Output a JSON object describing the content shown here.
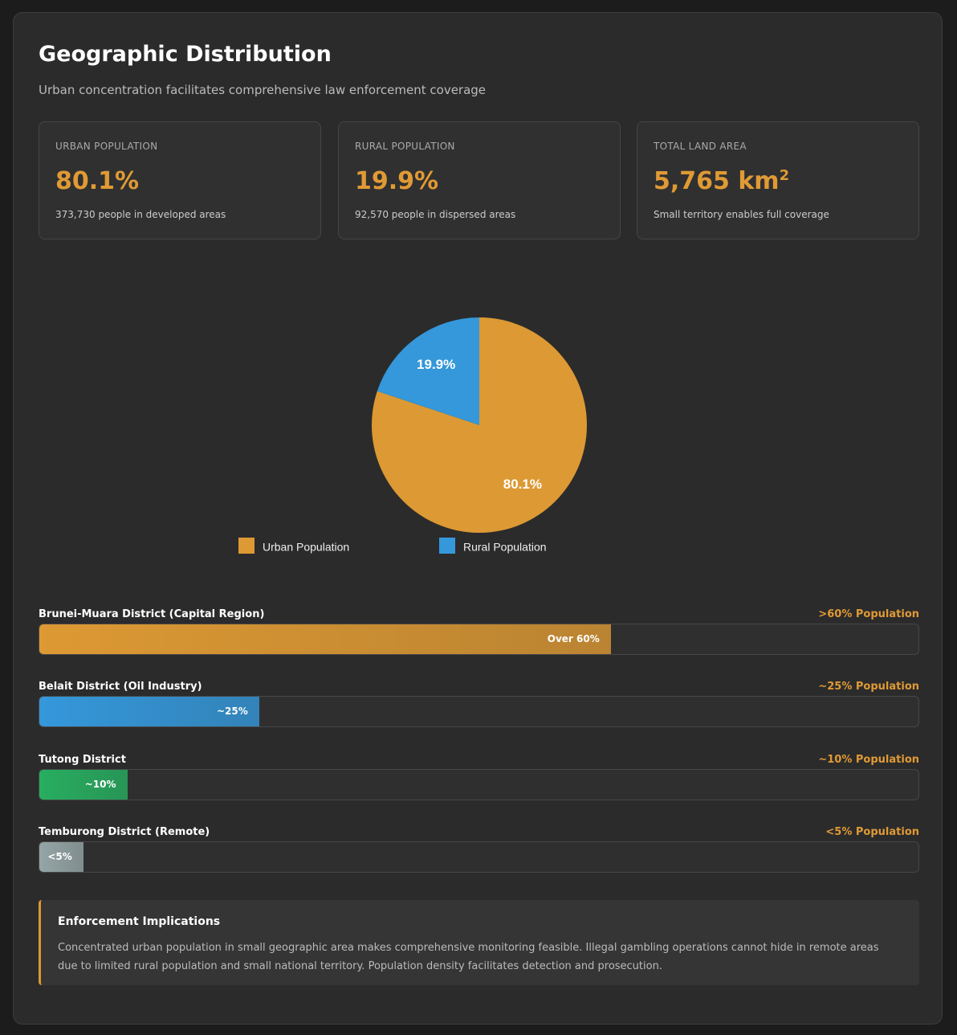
{
  "header": {
    "title": "Geographic Distribution",
    "subtitle": "Urban concentration facilitates comprehensive law enforcement coverage"
  },
  "cards": [
    {
      "label": "URBAN POPULATION",
      "value": "80.1%",
      "description": "373,730 people in developed areas"
    },
    {
      "label": "RURAL POPULATION",
      "value": "19.9%",
      "description": "92,570 people in dispersed areas"
    },
    {
      "label": "TOTAL LAND AREA",
      "value": "5,765 km",
      "value_sup": "2",
      "description": "Small territory enables full coverage"
    }
  ],
  "chart_data": {
    "type": "pie",
    "categories": [
      "Urban Population",
      "Rural Population"
    ],
    "values": [
      80.1,
      19.9
    ],
    "value_labels": [
      "80.1%",
      "19.9%"
    ],
    "colors": [
      "#dd9933",
      "#3498db"
    ]
  },
  "districts": [
    {
      "name": "Brunei-Muara District (Capital Region)",
      "share_label": ">60% Population",
      "value": 65,
      "value_label": "Over 60%",
      "color": "#dd9933"
    },
    {
      "name": "Belait District (Oil Industry)",
      "share_label": "~25% Population",
      "value": 25,
      "value_label": "~25%",
      "color": "#3498db"
    },
    {
      "name": "Tutong District",
      "share_label": "~10% Population",
      "value": 10,
      "value_label": "~10%",
      "color": "#27ae60"
    },
    {
      "name": "Temburong District (Remote)",
      "share_label": "<5% Population",
      "value": 5,
      "value_label": "<5%",
      "color": "#95a5a6"
    }
  ],
  "note": {
    "title": "Enforcement Implications",
    "text": "Concentrated urban population in small geographic area makes comprehensive monitoring feasible. Illegal gambling operations cannot hide in remote areas due to limited rural population and small national territory. Population density facilitates detection and prosecution."
  }
}
